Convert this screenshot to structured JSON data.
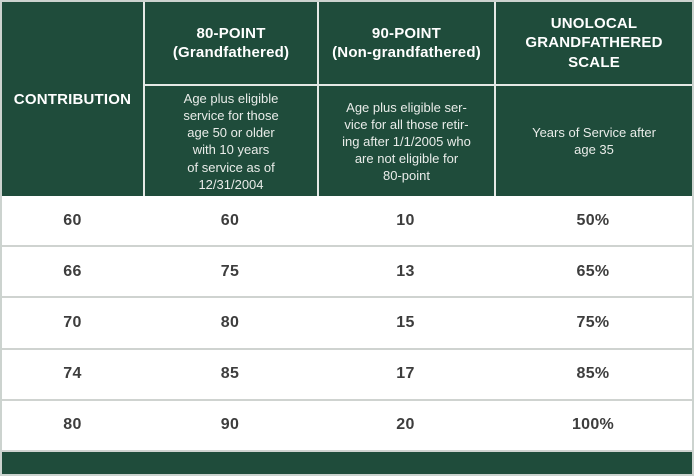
{
  "colors": {
    "header_green": "#1f4c3b",
    "footer_green": "#1f4c3b",
    "separator_light": "#cfd3d0",
    "header_text": "#ffffff",
    "data_text": "#3d3d3d"
  },
  "header": {
    "columns": [
      {
        "title": "80-POINT\n(Grandfathered)",
        "subtitle": "Age plus eligible\nservice for those\nage 50 or older\nwith 10 years\nof service as of\n12/31/2004"
      },
      {
        "title": "90-POINT\n(Non-grandfathered)",
        "subtitle": "Age plus eligible ser-\nvice for all those retir-\ning after 1/1/2005 who\nare not eligible for\n80-point"
      },
      {
        "title": "UNOLOCAL\nGRANDFATHERED\nSCALE",
        "subtitle": "Years of Service after\nage 35"
      },
      {
        "title": "CONTRIBUTION"
      }
    ]
  },
  "rows": [
    [
      "60",
      "60",
      "10",
      "50%"
    ],
    [
      "66",
      "75",
      "13",
      "65%"
    ],
    [
      "70",
      "80",
      "15",
      "75%"
    ],
    [
      "74",
      "85",
      "17",
      "85%"
    ],
    [
      "80",
      "90",
      "20",
      "100%"
    ]
  ],
  "chart_data": {
    "type": "table",
    "columns": [
      "80-POINT (Grandfathered)",
      "90-POINT (Non-grandfathered)",
      "UNOLOCAL GRANDFATHERED SCALE",
      "CONTRIBUTION"
    ],
    "column_descriptions": [
      "Age plus eligible service for those age 50 or older with 10 years of service as of 12/31/2004",
      "Age plus eligible service for all those retiring after 1/1/2005 who are not eligible for 80-point",
      "Years of Service after age 35",
      ""
    ],
    "rows": [
      [
        "60",
        "60",
        "10",
        "50%"
      ],
      [
        "66",
        "75",
        "13",
        "65%"
      ],
      [
        "70",
        "80",
        "15",
        "75%"
      ],
      [
        "74",
        "85",
        "17",
        "85%"
      ],
      [
        "80",
        "90",
        "20",
        "100%"
      ]
    ]
  }
}
